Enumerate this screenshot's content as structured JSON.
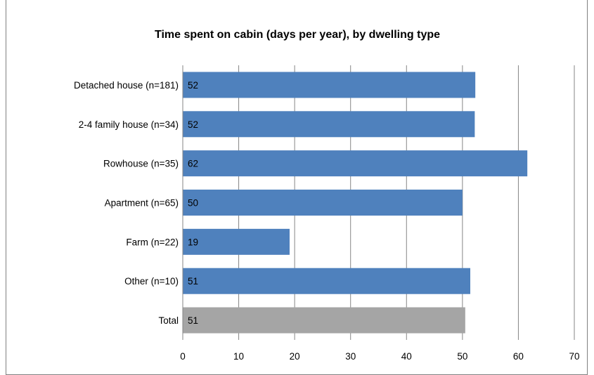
{
  "chart_data": {
    "type": "bar",
    "orientation": "horizontal",
    "title": "Time spent on cabin (days per year), by dwelling type",
    "xlabel": "",
    "ylabel": "",
    "categories": [
      "Detached house (n=181)",
      "2-4 family house (n=34)",
      "Rowhouse (n=35)",
      "Apartment (n=65)",
      "Farm (n=22)",
      "Other (n=10)",
      "Total"
    ],
    "values": [
      52.3,
      52.2,
      61.6,
      50.0,
      19.1,
      51.4,
      50.5
    ],
    "data_labels": [
      "52",
      "52",
      "62",
      "50",
      "19",
      "51",
      "51"
    ],
    "xlim": [
      0,
      70
    ],
    "xticks": [
      0,
      10,
      20,
      30,
      40,
      50,
      60,
      70
    ],
    "grid": "vertical",
    "legend": "none",
    "colors": {
      "bar": "#4F81BD",
      "total_bar": "#A5A5A5",
      "gridline": "#868686",
      "axis": "#868686"
    }
  }
}
